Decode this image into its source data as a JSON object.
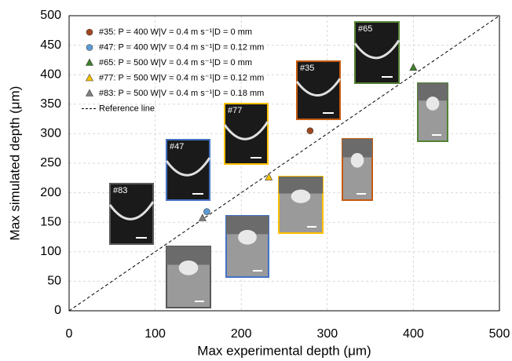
{
  "chart_data": {
    "type": "scatter",
    "x_label": "Max experimental depth (μm)",
    "y_label": "Max simulated depth (μm)",
    "xlim": [
      0,
      500
    ],
    "ylim": [
      0,
      500
    ],
    "xticks": [
      0,
      100,
      200,
      300,
      400,
      500
    ],
    "yticks": [
      0,
      50,
      100,
      150,
      200,
      250,
      300,
      350,
      400,
      450,
      500
    ],
    "grid": true,
    "legend": "upper left",
    "series": [
      {
        "name": "#35: P = 400 W|V = 0.4 m s⁻¹|D = 0 mm",
        "color": "#a0461e",
        "marker": "circle",
        "x": [
          280
        ],
        "values": [
          305
        ]
      },
      {
        "name": "#47: P = 400 W|V = 0.4 m s⁻¹|D = 0.12 mm",
        "color": "#5b9bd5",
        "marker": "circle",
        "x": [
          160
        ],
        "values": [
          168
        ]
      },
      {
        "name": "#65: P = 500 W|V = 0.4 m s⁻¹|D = 0 mm",
        "color": "#3f7f2a",
        "marker": "triangle",
        "x": [
          400
        ],
        "values": [
          412
        ]
      },
      {
        "name": "#77: P = 500 W|V = 0.4 m s⁻¹|D = 0.12 mm",
        "color": "#f5c000",
        "marker": "triangle",
        "x": [
          232
        ],
        "values": [
          226
        ]
      },
      {
        "name": "#83: P = 500 W|V = 0.4 m s⁻¹|D = 0.18 mm",
        "color": "#7f7f7f",
        "marker": "triangle",
        "x": [
          155
        ],
        "values": [
          157
        ]
      }
    ],
    "reference_line": {
      "name": "Reference line"
    },
    "insets": [
      "#83",
      "#47",
      "#77",
      "#35",
      "#65"
    ]
  }
}
